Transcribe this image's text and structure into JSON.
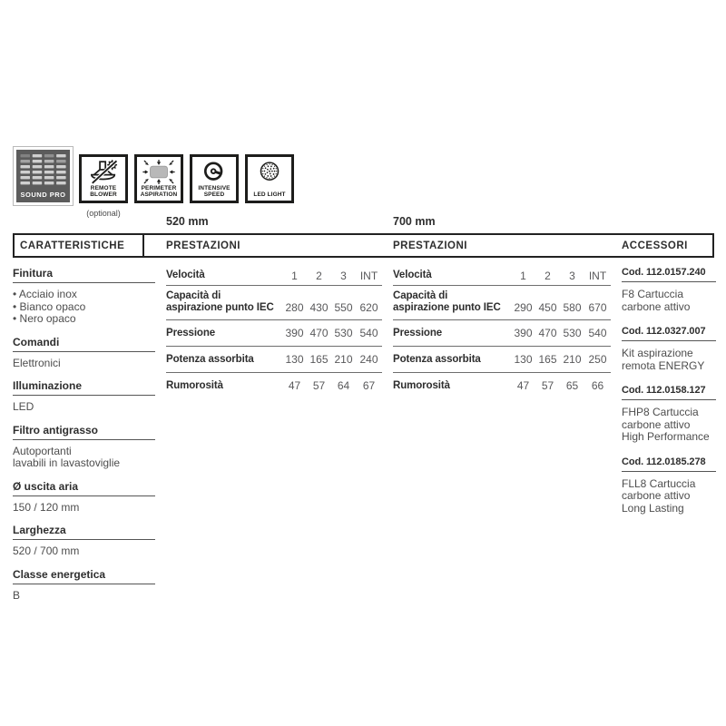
{
  "icons_row": {
    "sound_pro_label": "SOUND PRO",
    "badges": [
      {
        "name": "remote-blower",
        "label_lines": [
          "REMOTE",
          "BLOWER"
        ],
        "note": "(optional)"
      },
      {
        "name": "perimeter-aspiration",
        "label_lines": [
          "PERIMETER",
          "ASPIRATION"
        ]
      },
      {
        "name": "intensive-speed",
        "label_lines": [
          "INTENSIVE",
          "SPEED"
        ]
      },
      {
        "name": "led-light",
        "label_lines": [
          "LED LIGHT"
        ]
      }
    ]
  },
  "size_labels": {
    "left": "520 mm",
    "right": "700 mm"
  },
  "headers": {
    "caratteristiche": "CARATTERISTICHE",
    "prestazioni_left": "PRESTAZIONI",
    "prestazioni_right": "PRESTAZIONI",
    "accessori": "ACCESSORI"
  },
  "caratteristiche_sections": [
    {
      "title": "Finitura",
      "lines": [
        "• Acciaio inox",
        "• Bianco opaco",
        "• Nero opaco"
      ]
    },
    {
      "title": "Comandi",
      "lines": [
        "Elettronici"
      ]
    },
    {
      "title": "Illuminazione",
      "lines": [
        "LED"
      ]
    },
    {
      "title": "Filtro antigrasso",
      "lines": [
        "Autoportanti",
        "lavabili in lavastoviglie"
      ]
    },
    {
      "title": "Ø uscita aria",
      "lines": [
        "150 / 120 mm"
      ]
    },
    {
      "title": "Larghezza",
      "lines": [
        "520 / 700 mm"
      ]
    },
    {
      "title": "Classe energetica",
      "lines": [
        "B"
      ]
    }
  ],
  "prestazioni_tables": [
    {
      "size": "520 mm",
      "rows": [
        {
          "label_lines": [
            "Velocità"
          ],
          "values": [
            "1",
            "2",
            "3",
            "INT"
          ]
        },
        {
          "label_lines": [
            "Capacità di",
            "aspirazione punto IEC"
          ],
          "values": [
            "280",
            "430",
            "550",
            "620"
          ]
        },
        {
          "label_lines": [
            "Pressione"
          ],
          "values": [
            "390",
            "470",
            "530",
            "540"
          ]
        },
        {
          "label_lines": [
            "Potenza assorbita"
          ],
          "values": [
            "130",
            "165",
            "210",
            "240"
          ]
        },
        {
          "label_lines": [
            "Rumorosità"
          ],
          "values": [
            "47",
            "57",
            "64",
            "67"
          ]
        }
      ]
    },
    {
      "size": "700 mm",
      "rows": [
        {
          "label_lines": [
            "Velocità"
          ],
          "values": [
            "1",
            "2",
            "3",
            "INT"
          ]
        },
        {
          "label_lines": [
            "Capacità di",
            "aspirazione punto IEC"
          ],
          "values": [
            "290",
            "450",
            "580",
            "670"
          ]
        },
        {
          "label_lines": [
            "Pressione"
          ],
          "values": [
            "390",
            "470",
            "530",
            "540"
          ]
        },
        {
          "label_lines": [
            "Potenza assorbita"
          ],
          "values": [
            "130",
            "165",
            "210",
            "250"
          ]
        },
        {
          "label_lines": [
            "Rumorosità"
          ],
          "values": [
            "47",
            "57",
            "65",
            "66"
          ]
        }
      ]
    }
  ],
  "accessori_items": [
    {
      "code": "Cod. 112.0157.240",
      "lines": [
        "F8 Cartuccia",
        "carbone attivo"
      ]
    },
    {
      "code": "Cod. 112.0327.007",
      "lines": [
        "Kit aspirazione",
        "remota ENERGY"
      ]
    },
    {
      "code": "Cod. 112.0158.127",
      "lines": [
        "FHP8 Cartuccia",
        "carbone attivo",
        "High Performance"
      ]
    },
    {
      "code": "Cod. 112.0185.278",
      "lines": [
        "FLL8 Cartuccia",
        "carbone attivo",
        "Long Lasting"
      ]
    }
  ],
  "colors": {
    "ink": "#1d1d1b",
    "body_text": "#4d4d4d",
    "rule": "#6e6e6e",
    "sound_pro_bg": "#5c5c5c",
    "aspiration_fill": "#b8b8b8"
  }
}
